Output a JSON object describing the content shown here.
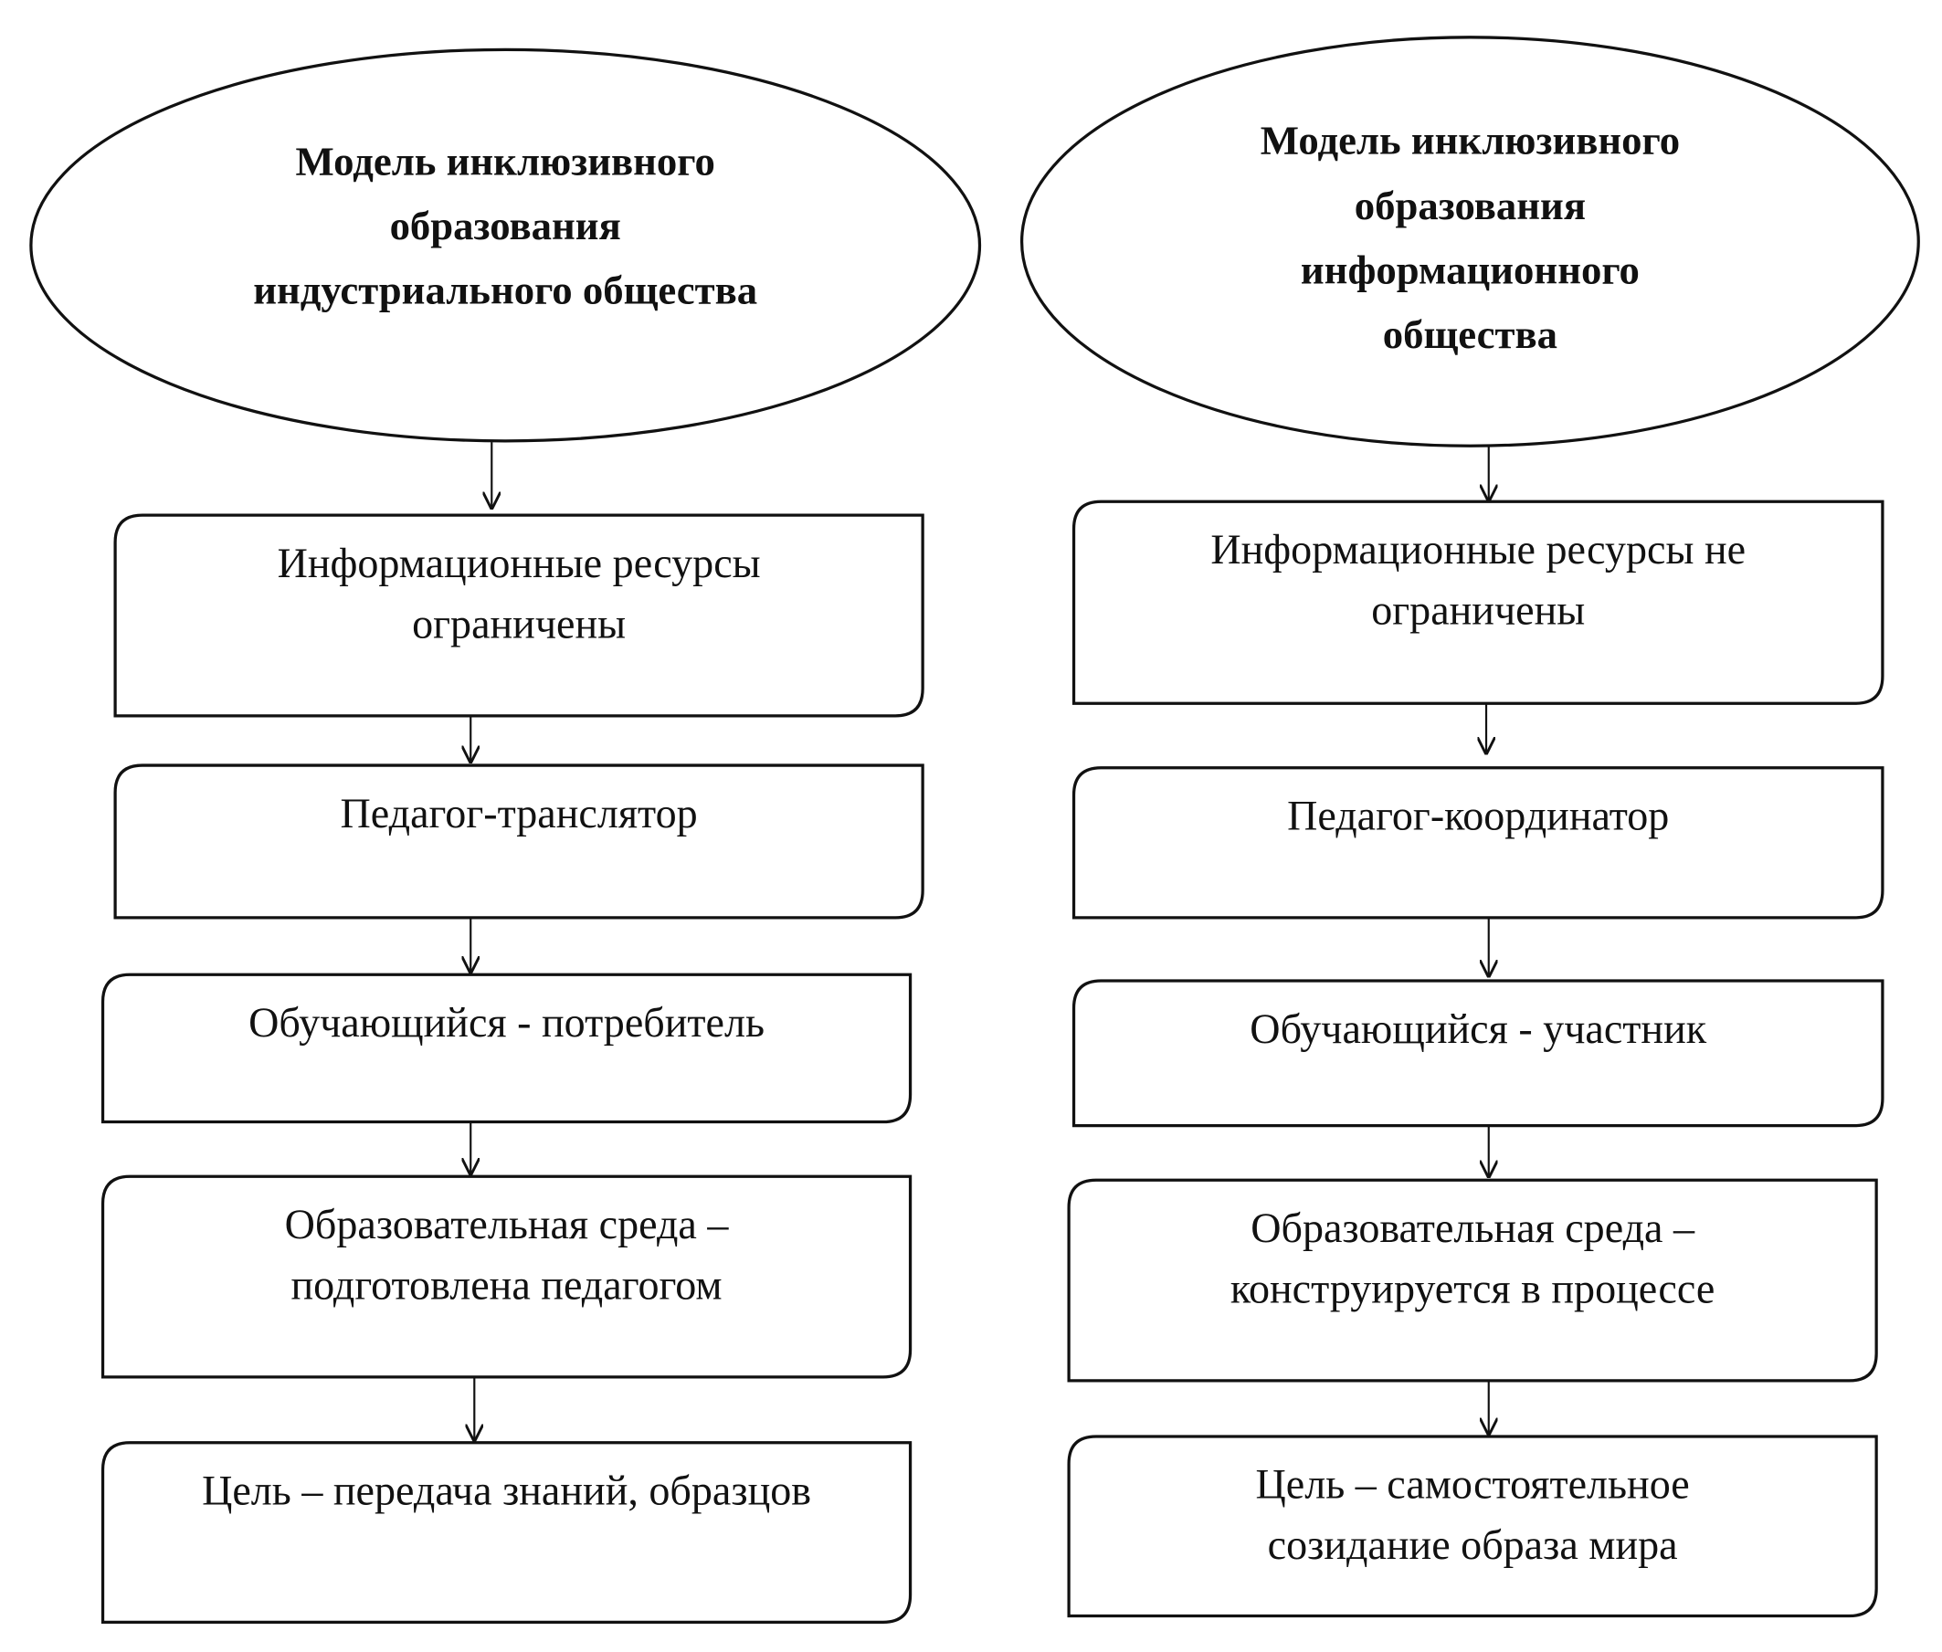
{
  "left": {
    "title": [
      "Модель инклюзивного",
      "образования",
      "индустриального общества"
    ],
    "boxes": [
      [
        "Информационные ресурсы",
        "ограничены"
      ],
      [
        "Педагог-транслятор"
      ],
      [
        "Обучающийся - потребитель"
      ],
      [
        "Образовательная среда –",
        "подготовлена педагогом"
      ],
      [
        "Цель – передача знаний, образцов"
      ]
    ]
  },
  "right": {
    "title": [
      "Модель инклюзивного",
      "образования",
      "информационного",
      "общества"
    ],
    "boxes": [
      [
        "Информационные ресурсы не",
        "ограничены"
      ],
      [
        "Педагог-координатор"
      ],
      [
        "Обучающийся - участник"
      ],
      [
        "Образовательная среда –",
        "конструируется в процессе"
      ],
      [
        "Цель  – самостоятельное",
        "созидание образа мира"
      ]
    ]
  }
}
